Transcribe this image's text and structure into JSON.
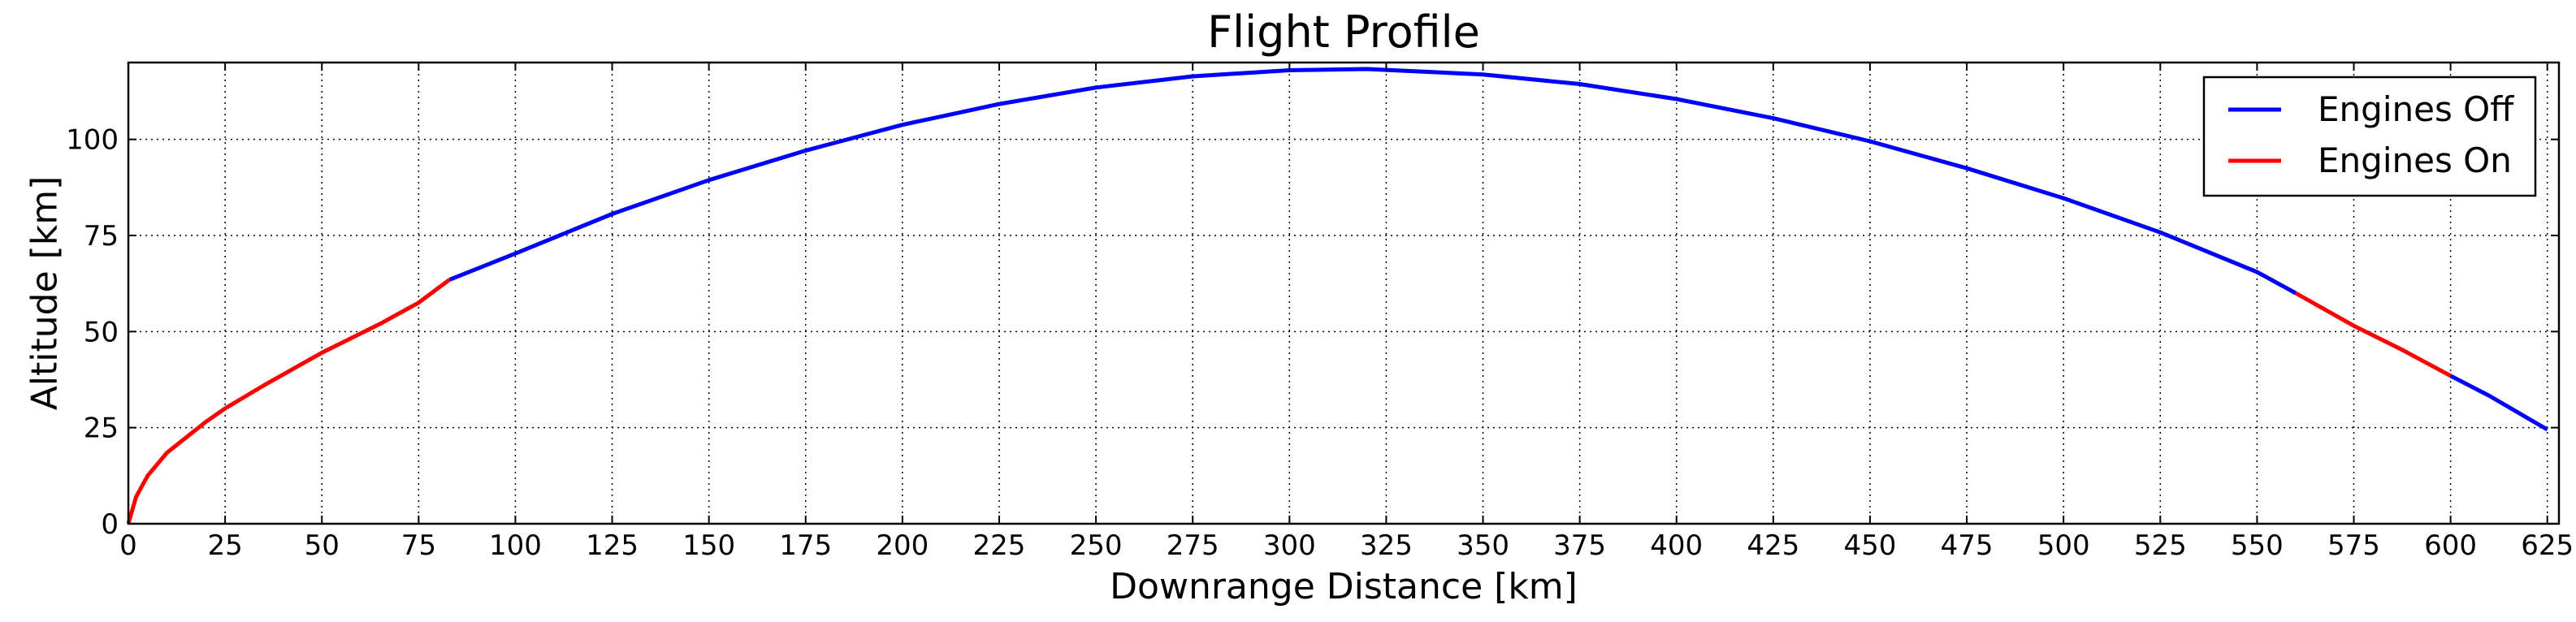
{
  "chart_data": {
    "type": "line",
    "title": "Flight Profile",
    "xlabel": "Downrange Distance [km]",
    "ylabel": "Altitude [km]",
    "xlim": [
      0,
      628
    ],
    "ylim": [
      0,
      120
    ],
    "xticks": [
      0,
      25,
      50,
      75,
      100,
      125,
      150,
      175,
      200,
      225,
      250,
      275,
      300,
      325,
      350,
      375,
      400,
      425,
      450,
      475,
      500,
      525,
      550,
      575,
      600,
      625
    ],
    "yticks": [
      0,
      25,
      50,
      75,
      100
    ],
    "grid": true,
    "legend_position": "top-right",
    "series": [
      {
        "name": "Engines Off",
        "color": "#0000ff",
        "segments": [
          [
            [
              83,
              63.5
            ],
            [
              100,
              70.3
            ],
            [
              125,
              80.6
            ],
            [
              150,
              89.4
            ],
            [
              175,
              97.1
            ],
            [
              200,
              103.8
            ],
            [
              225,
              109.2
            ],
            [
              250,
              113.5
            ],
            [
              275,
              116.4
            ],
            [
              300,
              118.0
            ],
            [
              320,
              118.3
            ],
            [
              350,
              116.9
            ],
            [
              375,
              114.4
            ],
            [
              400,
              110.5
            ],
            [
              425,
              105.5
            ],
            [
              450,
              99.5
            ],
            [
              475,
              92.5
            ],
            [
              500,
              84.7
            ],
            [
              525,
              75.8
            ],
            [
              550,
              65.5
            ],
            [
              560,
              60.0
            ]
          ],
          [
            [
              600,
              38.5
            ],
            [
              610,
              33.3
            ],
            [
              625,
              24.5
            ]
          ]
        ]
      },
      {
        "name": "Engines On",
        "color": "#ff0000",
        "segments": [
          [
            [
              0,
              0
            ],
            [
              2,
              7
            ],
            [
              5,
              12.5
            ],
            [
              10,
              18.5
            ],
            [
              15,
              22.5
            ],
            [
              20,
              26.5
            ],
            [
              25,
              30.0
            ],
            [
              35,
              36.0
            ],
            [
              50,
              44.5
            ],
            [
              65,
              52.0
            ],
            [
              75,
              57.5
            ],
            [
              83,
              63.5
            ]
          ],
          [
            [
              560,
              60.0
            ],
            [
              575,
              51.5
            ],
            [
              587,
              45.5
            ],
            [
              600,
              38.5
            ]
          ]
        ]
      }
    ]
  }
}
